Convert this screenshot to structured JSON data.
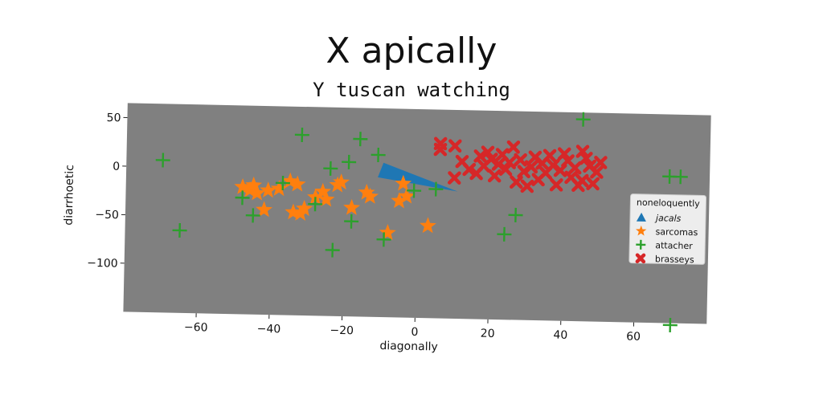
{
  "chart_data": {
    "type": "scatter",
    "title": "X apically",
    "subtitle": "Y tuscan watching",
    "xlabel": "diagonally",
    "ylabel": "diarrhoetic",
    "xlim": [
      -80,
      80
    ],
    "ylim": [
      -150,
      65
    ],
    "x_ticks": [
      -60,
      -40,
      -20,
      0,
      20,
      40,
      60
    ],
    "y_ticks": [
      50,
      0,
      -50,
      -100
    ],
    "grid": false,
    "background": "#808080",
    "legend": {
      "title": "noneloquently",
      "position": "right"
    },
    "series": [
      {
        "name": "jacals",
        "marker": "triangle",
        "color": "#1f77b4",
        "style": "filled-polygon",
        "points": [
          [
            -9.5,
            9
          ],
          [
            11,
            -19
          ],
          [
            -11,
            -6
          ]
        ]
      },
      {
        "name": "sarcomas",
        "marker": "star",
        "color": "#ff7f0e",
        "points": [
          [
            -48,
            -19
          ],
          [
            -46,
            -22
          ],
          [
            -45,
            -17
          ],
          [
            -44,
            -25
          ],
          [
            -42,
            -42
          ],
          [
            -41,
            -22
          ],
          [
            -38,
            -20
          ],
          [
            -35,
            -12
          ],
          [
            -33,
            -15
          ],
          [
            -34,
            -44
          ],
          [
            -32,
            -45
          ],
          [
            -31,
            -40
          ],
          [
            -28,
            -28
          ],
          [
            -26,
            -22
          ],
          [
            -25,
            -30
          ],
          [
            -22,
            -15
          ],
          [
            -21,
            -12
          ],
          [
            -18,
            -38
          ],
          [
            -14,
            -22
          ],
          [
            -13,
            -26
          ],
          [
            -8,
            -63
          ],
          [
            -5,
            -30
          ],
          [
            -4,
            -12
          ],
          [
            -3,
            -25
          ],
          [
            3,
            -55
          ]
        ]
      },
      {
        "name": "attacher",
        "marker": "plus",
        "color": "#2ca02c",
        "points": [
          [
            -70,
            7
          ],
          [
            -65,
            -65
          ],
          [
            -48,
            -30
          ],
          [
            -45,
            -48
          ],
          [
            -37,
            -14
          ],
          [
            -32,
            36
          ],
          [
            -28,
            -35
          ],
          [
            -24,
            2
          ],
          [
            -23,
            -82
          ],
          [
            -19,
            9
          ],
          [
            -18,
            -52
          ],
          [
            -16,
            33
          ],
          [
            -11,
            17
          ],
          [
            -9,
            -70
          ],
          [
            -1,
            -19
          ],
          [
            5,
            -17
          ],
          [
            24,
            -62
          ],
          [
            27,
            -42
          ],
          [
            45,
            58
          ],
          [
            69,
            1
          ],
          [
            72,
            1
          ],
          [
            70,
            -152
          ]
        ]
      },
      {
        "name": "brasseys",
        "marker": "x",
        "color": "#d62728",
        "points": [
          [
            6,
            30
          ],
          [
            6,
            24
          ],
          [
            10,
            28
          ],
          [
            10,
            -5
          ],
          [
            12,
            12
          ],
          [
            14,
            4
          ],
          [
            16,
            0
          ],
          [
            17,
            18
          ],
          [
            18,
            8
          ],
          [
            19,
            22
          ],
          [
            20,
            15
          ],
          [
            21,
            -2
          ],
          [
            22,
            10
          ],
          [
            23,
            20
          ],
          [
            24,
            5
          ],
          [
            25,
            12
          ],
          [
            26,
            28
          ],
          [
            27,
            -8
          ],
          [
            28,
            15
          ],
          [
            29,
            3
          ],
          [
            30,
            -12
          ],
          [
            31,
            8
          ],
          [
            32,
            18
          ],
          [
            33,
            -5
          ],
          [
            34,
            12
          ],
          [
            35,
            2
          ],
          [
            36,
            20
          ],
          [
            37,
            10
          ],
          [
            38,
            -10
          ],
          [
            39,
            5
          ],
          [
            40,
            22
          ],
          [
            41,
            15
          ],
          [
            42,
            -2
          ],
          [
            43,
            8
          ],
          [
            44,
            -10
          ],
          [
            45,
            25
          ],
          [
            45,
            -5
          ],
          [
            46,
            18
          ],
          [
            47,
            10
          ],
          [
            48,
            -8
          ],
          [
            49,
            4
          ],
          [
            50,
            14
          ]
        ]
      }
    ]
  }
}
